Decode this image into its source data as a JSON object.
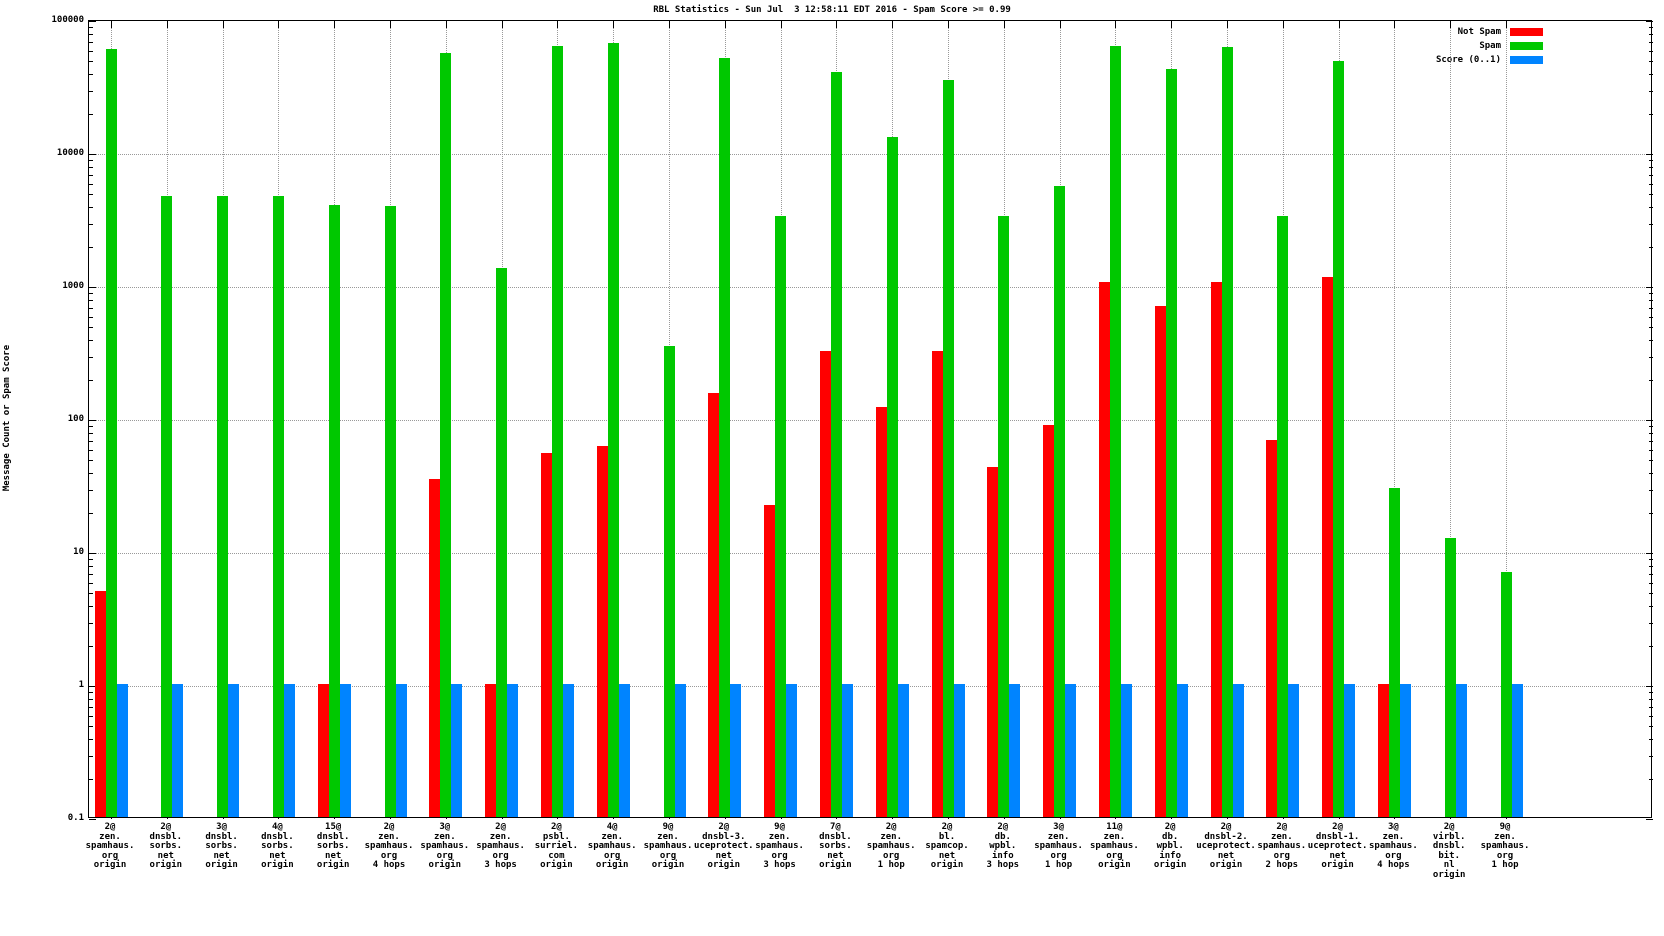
{
  "title": "RBL Statistics - Sun Jul  3 12:58:11 EDT 2016 - Spam Score >= 0.99",
  "y_axis": {
    "label": "Message Count or Spam Score"
  },
  "legend": [
    {
      "label": "Not Spam",
      "color": "#ff0000"
    },
    {
      "label": "Spam",
      "color": "#00c800"
    },
    {
      "label": "Score (0..1)",
      "color": "#0084ff"
    }
  ],
  "chart_data": {
    "type": "bar",
    "y_scale": "log",
    "ylim": [
      0.1,
      100000
    ],
    "y_ticks": [
      100000,
      10000,
      1000,
      100,
      10,
      1,
      0.1
    ],
    "grid": true,
    "legend_position": "top-right",
    "series": [
      "Not Spam",
      "Spam",
      "Score (0..1)"
    ],
    "colors": {
      "not_spam": "#ff0000",
      "spam": "#00c800",
      "score": "#0084ff"
    },
    "groups": [
      {
        "label_lines": [
          "2@",
          "zen.",
          "spamhaus.",
          "org",
          "origin"
        ],
        "not_spam": 5,
        "spam": 60000,
        "score": 1
      },
      {
        "label_lines": [
          "2@",
          "dnsbl.",
          "sorbs.",
          "net",
          "origin"
        ],
        "not_spam": null,
        "spam": 4700,
        "score": 1
      },
      {
        "label_lines": [
          "3@",
          "dnsbl.",
          "sorbs.",
          "net",
          "origin"
        ],
        "not_spam": null,
        "spam": 4700,
        "score": 1
      },
      {
        "label_lines": [
          "4@",
          "dnsbl.",
          "sorbs.",
          "net",
          "origin"
        ],
        "not_spam": null,
        "spam": 4700,
        "score": 1
      },
      {
        "label_lines": [
          "15@",
          "dnsbl.",
          "sorbs.",
          "net",
          "origin"
        ],
        "not_spam": 1,
        "spam": 4000,
        "score": 1
      },
      {
        "label_lines": [
          "2@",
          "zen.",
          "spamhaus.",
          "org",
          "4 hops"
        ],
        "not_spam": null,
        "spam": 3900,
        "score": 1
      },
      {
        "label_lines": [
          "3@",
          "zen.",
          "spamhaus.",
          "org",
          "origin"
        ],
        "not_spam": 35,
        "spam": 56000,
        "score": 1
      },
      {
        "label_lines": [
          "2@",
          "zen.",
          "spamhaus.",
          "org",
          "3 hops"
        ],
        "not_spam": 1,
        "spam": 1350,
        "score": 1
      },
      {
        "label_lines": [
          "2@",
          "psbl.",
          "surriel.",
          "com",
          "origin"
        ],
        "not_spam": 55,
        "spam": 63000,
        "score": 1
      },
      {
        "label_lines": [
          "4@",
          "zen.",
          "spamhaus.",
          "org",
          "origin"
        ],
        "not_spam": 62,
        "spam": 66000,
        "score": 1
      },
      {
        "label_lines": [
          "9@",
          "zen.",
          "spamhaus.",
          "org",
          "origin"
        ],
        "not_spam": null,
        "spam": 350,
        "score": 1
      },
      {
        "label_lines": [
          "2@",
          "dnsbl-3.",
          "uceprotect.",
          "net",
          "origin"
        ],
        "not_spam": 155,
        "spam": 51000,
        "score": 1
      },
      {
        "label_lines": [
          "9@",
          "zen.",
          "spamhaus.",
          "org",
          "3 hops"
        ],
        "not_spam": 22,
        "spam": 3300,
        "score": 1
      },
      {
        "label_lines": [
          "7@",
          "dnsbl.",
          "sorbs.",
          "net",
          "origin"
        ],
        "not_spam": 320,
        "spam": 40000,
        "score": 1
      },
      {
        "label_lines": [
          "2@",
          "zen.",
          "spamhaus.",
          "org",
          "1 hop"
        ],
        "not_spam": 120,
        "spam": 13000,
        "score": 1
      },
      {
        "label_lines": [
          "2@",
          "bl.",
          "spamcop.",
          "net",
          "origin"
        ],
        "not_spam": 320,
        "spam": 35000,
        "score": 1
      },
      {
        "label_lines": [
          "2@",
          "db.",
          "wpbl.",
          "info",
          "3 hops"
        ],
        "not_spam": 43,
        "spam": 3300,
        "score": 1
      },
      {
        "label_lines": [
          "3@",
          "zen.",
          "spamhaus.",
          "org",
          "1 hop"
        ],
        "not_spam": 88,
        "spam": 5600,
        "score": 1
      },
      {
        "label_lines": [
          "11@",
          "zen.",
          "spamhaus.",
          "org",
          "origin"
        ],
        "not_spam": 1050,
        "spam": 63000,
        "score": 1
      },
      {
        "label_lines": [
          "2@",
          "db.",
          "wpbl.",
          "info",
          "origin"
        ],
        "not_spam": 700,
        "spam": 42000,
        "score": 1
      },
      {
        "label_lines": [
          "2@",
          "dnsbl-2.",
          "uceprotect.",
          "net",
          "origin"
        ],
        "not_spam": 1060,
        "spam": 62000,
        "score": 1
      },
      {
        "label_lines": [
          "2@",
          "zen.",
          "spamhaus.",
          "org",
          "2 hops"
        ],
        "not_spam": 68,
        "spam": 3300,
        "score": 1
      },
      {
        "label_lines": [
          "2@",
          "dnsbl-1.",
          "uceprotect.",
          "net",
          "origin"
        ],
        "not_spam": 1150,
        "spam": 48000,
        "score": 1
      },
      {
        "label_lines": [
          "3@",
          "zen.",
          "spamhaus.",
          "org",
          "4 hops"
        ],
        "not_spam": 1,
        "spam": 30,
        "score": 1
      },
      {
        "label_lines": [
          "2@",
          "virbl.",
          "dnsbl.",
          "bit.",
          "nl",
          "origin"
        ],
        "not_spam": null,
        "spam": 12.5,
        "score": 1
      },
      {
        "label_lines": [
          "9@",
          "zen.",
          "spamhaus.",
          "org",
          "1 hop"
        ],
        "not_spam": null,
        "spam": 7,
        "score": 1
      }
    ]
  }
}
